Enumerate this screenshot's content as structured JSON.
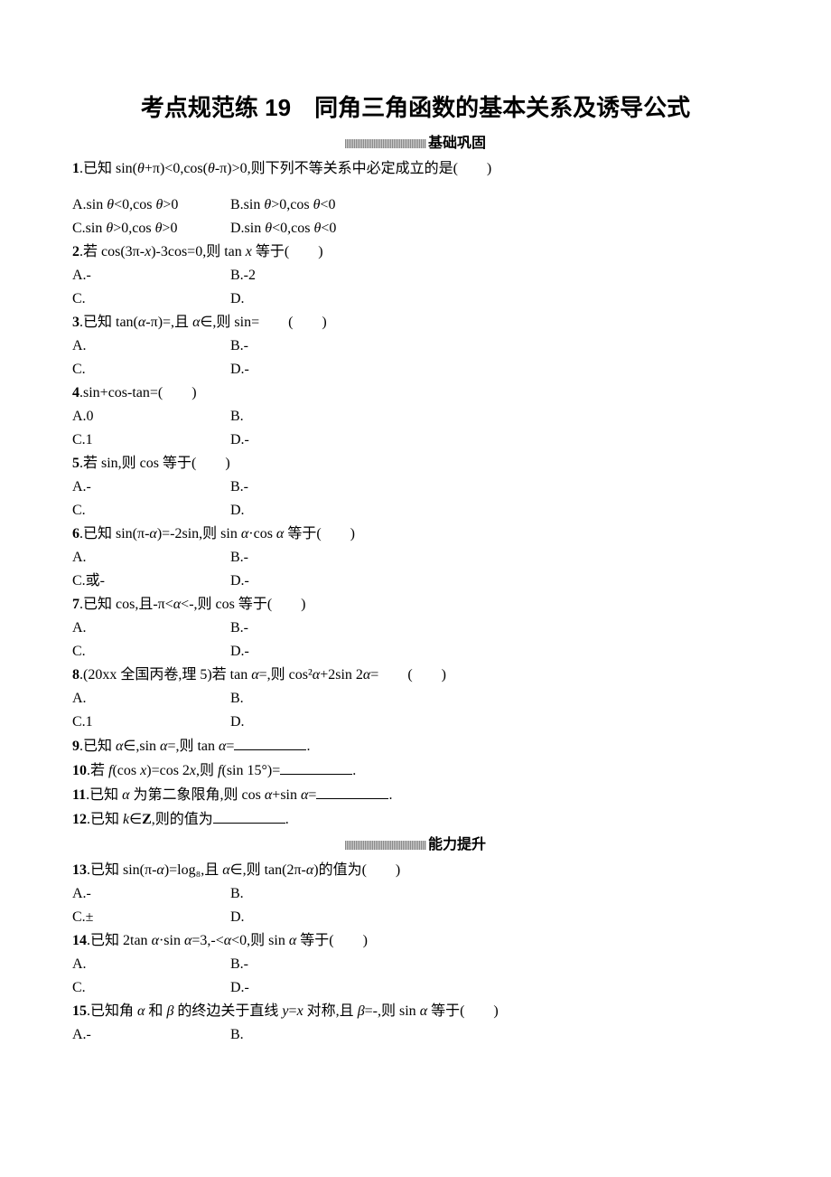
{
  "title": "考点规范练 19　同角三角函数的基本关系及诱导公式",
  "section1_label": "基础巩固",
  "section2_label": "能力提升",
  "q1": {
    "num": "1",
    "text": ".已知 sin(<i>θ</i>+π)<0,cos(<i>θ</i>-π)>0,则下列不等关系中必定成立的是(　　)",
    "A": "A.sin <i>θ</i><0,cos <i>θ</i>>0",
    "B": "B.sin <i>θ</i>>0,cos <i>θ</i><0",
    "C": "C.sin <i>θ</i>>0,cos <i>θ</i>>0",
    "D": "D.sin <i>θ</i><0,cos <i>θ</i><0"
  },
  "q2": {
    "num": "2",
    "text": ".若 cos(3π-<i>x</i>)-3cos=0,则 tan <i>x</i> 等于(　　)",
    "A": "A.-",
    "B": "B.-2",
    "C": "C.",
    "D": "D."
  },
  "q3": {
    "num": "3",
    "text": ".已知 tan(<i>α</i>-π)=,且 <i>α</i>∈,则 sin=　　(　　)",
    "A": "A.",
    "B": "B.-",
    "C": "C.",
    "D": "D.-"
  },
  "q4": {
    "num": "4",
    "text": ".sin+cos-tan=(　　)",
    "A": "A.0",
    "B": "B.",
    "C": "C.1",
    "D": "D.-"
  },
  "q5": {
    "num": "5",
    "text": ".若 sin,则 cos 等于(　　)",
    "A": "A.-",
    "B": "B.-",
    "C": "C.",
    "D": "D."
  },
  "q6": {
    "num": "6",
    "text": ".已知 sin(π-<i>α</i>)=-2sin,则 sin <i>α</i>·cos <i>α</i> 等于(　　)",
    "A": "A.",
    "B": "B.-",
    "C": "C.或-",
    "D": "D.-"
  },
  "q7": {
    "num": "7",
    "text": ".已知 cos,且-π<<i>α</i><-,则 cos 等于(　　)",
    "A": "A.",
    "B": "B.-",
    "C": "C.",
    "D": "D.-"
  },
  "q8": {
    "num": "8",
    "text": ".(20xx 全国丙卷,理 5)若 tan <i>α</i>=,则 cos²<i>α</i>+2sin 2<i>α</i>=　　(　　)",
    "A": "A.",
    "B": "B.",
    "C": "C.1",
    "D": "D."
  },
  "q9": {
    "num": "9",
    "text": ".已知 <i>α</i>∈,sin <i>α</i>=,则 tan <i>α</i>=",
    "suffix": "."
  },
  "q10": {
    "num": "10",
    "text": ".若 <i>f</i>(cos <i>x</i>)=cos 2<i>x</i>,则 <i>f</i>(sin 15°)=",
    "suffix": "."
  },
  "q11": {
    "num": "11",
    "text": ".已知 <i>α</i> 为第二象限角,则 cos <i>α</i>+sin <i>α</i>=",
    "suffix": "."
  },
  "q12": {
    "num": "12",
    "text": ".已知 <i>k</i>∈<b>Z</b>,则的值为",
    "suffix": "."
  },
  "q13": {
    "num": "13",
    "text": ".已知 sin(π-<i>α</i>)=log₈,且 <i>α</i>∈,则 tan(2π-<i>α</i>)的值为(　　)",
    "A": "A.-",
    "B": "B.",
    "C": "C.±",
    "D": "D."
  },
  "q14": {
    "num": "14",
    "text": ".已知 2tan <i>α</i>·sin <i>α</i>=3,-<<i>α</i><0,则 sin <i>α</i> 等于(　　)",
    "A": "A.",
    "B": "B.-",
    "C": "C.",
    "D": "D.-"
  },
  "q15": {
    "num": "15",
    "text": ".已知角 <i>α</i> 和 <i>β</i> 的终边关于直线 <i>y</i>=<i>x</i> 对称,且 <i>β</i>=-,则 sin <i>α</i> 等于(　　)",
    "A": "A.-",
    "B": "B."
  }
}
